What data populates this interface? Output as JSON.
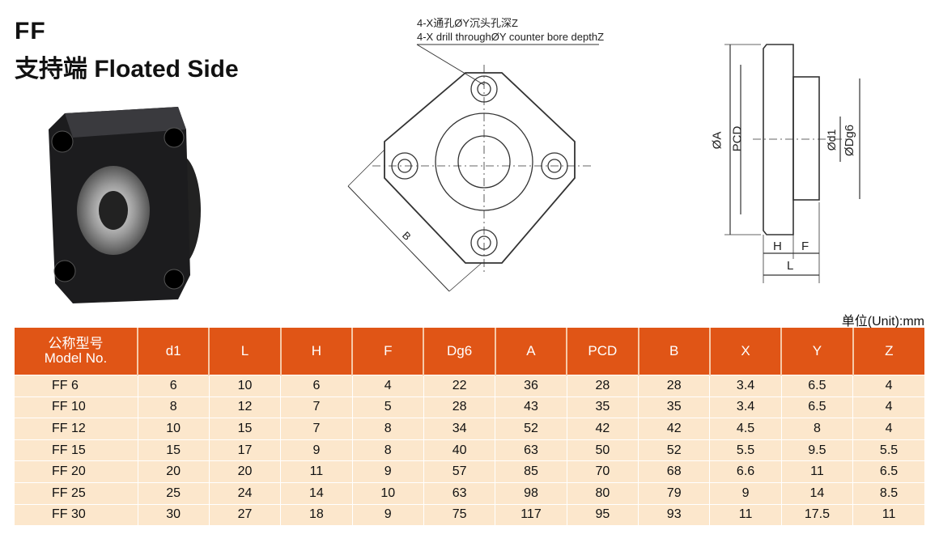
{
  "title": {
    "code": "FF",
    "name": "支持端 Floated Side"
  },
  "drawing": {
    "hole_note_cn": "4-X通孔ØY沉头孔深Z",
    "hole_note_en": "4-X drill throughØY counter bore depthZ",
    "dim_B": "B",
    "dim_A": "ØA",
    "dim_PCD": "PCD",
    "dim_d1": "Ød1",
    "dim_Dg6": "ØDg6",
    "dim_H": "H",
    "dim_F": "F",
    "dim_L": "L"
  },
  "unit": "单位(Unit):mm",
  "table": {
    "headers": [
      [
        "公称型号",
        "Model No."
      ],
      [
        "d1"
      ],
      [
        "L"
      ],
      [
        "H"
      ],
      [
        "F"
      ],
      [
        "Dg6"
      ],
      [
        "A"
      ],
      [
        "PCD"
      ],
      [
        "B"
      ],
      [
        "X"
      ],
      [
        "Y"
      ],
      [
        "Z"
      ]
    ],
    "rows": [
      [
        "FF 6",
        "6",
        "10",
        "6",
        "4",
        "22",
        "36",
        "28",
        "28",
        "3.4",
        "6.5",
        "4"
      ],
      [
        "FF 10",
        "8",
        "12",
        "7",
        "5",
        "28",
        "43",
        "35",
        "35",
        "3.4",
        "6.5",
        "4"
      ],
      [
        "FF 12",
        "10",
        "15",
        "7",
        "8",
        "34",
        "52",
        "42",
        "42",
        "4.5",
        "8",
        "4"
      ],
      [
        "FF 15",
        "15",
        "17",
        "9",
        "8",
        "40",
        "63",
        "50",
        "52",
        "5.5",
        "9.5",
        "5.5"
      ],
      [
        "FF 20",
        "20",
        "20",
        "11",
        "9",
        "57",
        "85",
        "70",
        "68",
        "6.6",
        "11",
        "6.5"
      ],
      [
        "FF 25",
        "25",
        "24",
        "14",
        "10",
        "63",
        "98",
        "80",
        "79",
        "9",
        "14",
        "8.5"
      ],
      [
        "FF 30",
        "30",
        "27",
        "18",
        "9",
        "75",
        "117",
        "95",
        "93",
        "11",
        "17.5",
        "11"
      ]
    ]
  },
  "colors": {
    "header_bg": "#e05516",
    "row_bg": "#fce7cc"
  }
}
